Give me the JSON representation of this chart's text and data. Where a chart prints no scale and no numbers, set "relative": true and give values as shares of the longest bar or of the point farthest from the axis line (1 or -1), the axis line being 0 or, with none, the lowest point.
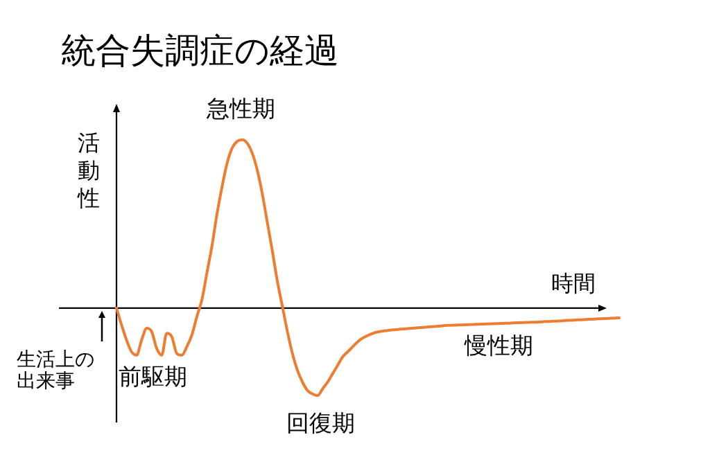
{
  "chart_data": {
    "type": "line",
    "title": "統合失調症の経過",
    "xlabel": "時間",
    "ylabel": "活動性",
    "annotations": [
      "急性期",
      "前駆期",
      "回復期",
      "慢性期",
      "生活上の出来事"
    ],
    "relative": true,
    "marker": "none",
    "line_style": "solid",
    "categories": [
      null,
      null,
      null,
      null,
      null,
      null,
      null,
      null,
      null,
      null,
      null,
      null,
      null,
      null,
      null,
      null,
      null,
      null,
      null,
      null,
      null,
      null,
      null,
      null,
      null,
      null,
      null,
      null,
      null,
      null,
      null,
      null,
      null,
      null,
      null,
      null,
      null,
      null,
      null,
      null,
      null,
      null,
      null,
      null,
      null,
      null,
      null,
      null,
      null,
      null,
      null,
      null,
      null,
      null,
      null,
      null,
      null,
      null,
      null,
      null,
      null,
      null,
      null,
      null,
      null,
      null,
      null,
      null,
      null,
      null,
      null,
      null,
      null,
      null,
      null,
      null,
      null,
      null,
      null,
      null,
      null,
      null,
      null,
      null,
      null,
      null,
      null,
      null,
      null,
      null,
      null,
      null,
      null,
      null,
      null,
      null,
      null,
      null,
      null,
      null,
      null
    ],
    "series": [
      {
        "color": "#ed7d31",
        "values": [
          0,
          -0.1,
          -0.19,
          -0.26,
          -0.28,
          -0.19,
          -0.12,
          -0.14,
          -0.24,
          -0.28,
          -0.15,
          -0.17,
          -0.27,
          -0.28,
          -0.23,
          -0.16,
          -0.05,
          0.05,
          0.21,
          0.37,
          0.56,
          0.72,
          0.86,
          0.95,
          0.99,
          1,
          0.98,
          0.92,
          0.82,
          0.68,
          0.51,
          0.34,
          0.16,
          0.01,
          -0.14,
          -0.27,
          -0.37,
          -0.44,
          -0.49,
          -0.51,
          -0.52,
          -0.48,
          -0.44,
          -0.39,
          -0.34,
          -0.29,
          -0.26,
          -0.23,
          -0.2,
          -0.178,
          -0.163,
          -0.15,
          -0.142,
          -0.137,
          -0.133,
          -0.129,
          -0.127,
          -0.124,
          -0.122,
          -0.119,
          -0.117,
          -0.115,
          -0.112,
          -0.11,
          -0.108,
          -0.105,
          -0.103,
          -0.102,
          -0.101,
          -0.1,
          -0.099,
          -0.097,
          -0.096,
          -0.095,
          -0.094,
          -0.093,
          -0.092,
          -0.091,
          -0.09,
          -0.088,
          -0.087,
          -0.086,
          -0.085,
          -0.084,
          -0.083,
          -0.081,
          -0.08,
          -0.078,
          -0.077,
          -0.075,
          -0.073,
          -0.072,
          -0.07,
          -0.069,
          -0.067,
          -0.066,
          -0.064,
          -0.063,
          -0.061,
          -0.06,
          -0.058
        ]
      }
    ]
  }
}
